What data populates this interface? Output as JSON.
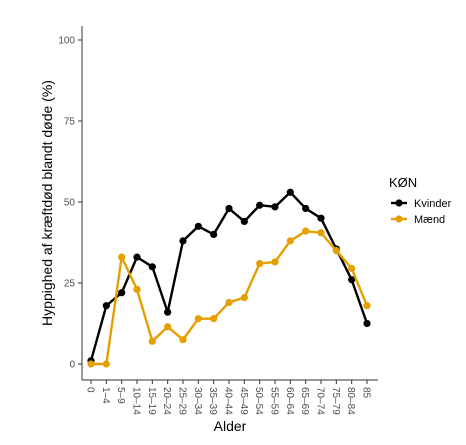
{
  "chart_data": {
    "type": "line",
    "title": "",
    "xlabel": "Alder",
    "ylabel": "Hyppighed af kræftdød blandt døde (%)",
    "categories": [
      "0",
      "1–4",
      "5–9",
      "10–14",
      "15–19",
      "20–24",
      "25–29",
      "30–34",
      "35–39",
      "40–44",
      "45–49",
      "50–54",
      "55–59",
      "60–64",
      "65–69",
      "70–74",
      "75–79",
      "80–84",
      "85"
    ],
    "ylim": [
      0,
      100
    ],
    "yticks": [
      0,
      25,
      50,
      75,
      100
    ],
    "grid": false,
    "legend": {
      "title": "KØN",
      "position": "right"
    },
    "series": [
      {
        "name": "Kvinder",
        "color": "#000000",
        "values": [
          1,
          18,
          22,
          33,
          30,
          16,
          38,
          42.5,
          40,
          48,
          44,
          49,
          48.5,
          53,
          48,
          45,
          35.5,
          26,
          12.5
        ]
      },
      {
        "name": "Mænd",
        "color": "#E69F00",
        "values": [
          0,
          0,
          33,
          23,
          7,
          11.5,
          7.5,
          14,
          14,
          19,
          20.5,
          31,
          31.5,
          38,
          41,
          40.5,
          35,
          29.5,
          18
        ]
      }
    ]
  }
}
